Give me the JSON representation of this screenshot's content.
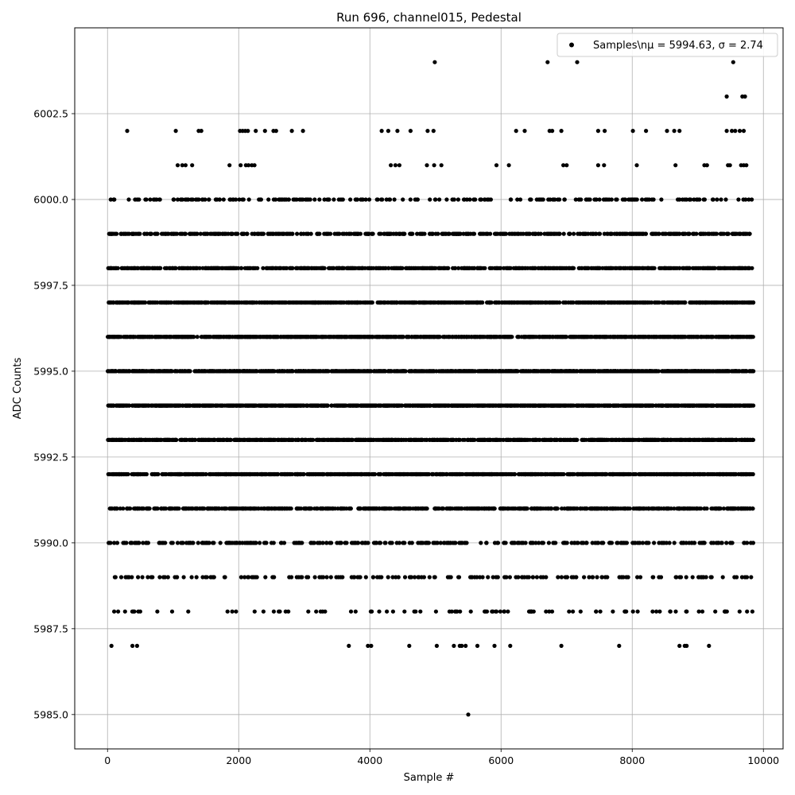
{
  "chart_data": {
    "type": "scatter",
    "title": "Run 696, channel015, Pedestal",
    "xlabel": "Sample #",
    "ylabel": "ADC Counts",
    "xlim": [
      -500,
      10300
    ],
    "ylim": [
      5984.0,
      6005.0
    ],
    "xticks": [
      0,
      2000,
      4000,
      6000,
      8000,
      10000
    ],
    "xtick_labels": [
      "0",
      "2000",
      "4000",
      "6000",
      "8000",
      "10000"
    ],
    "yticks": [
      5985.0,
      5987.5,
      5990.0,
      5992.5,
      5995.0,
      5997.5,
      6000.0,
      6002.5
    ],
    "ytick_labels": [
      "5985.0",
      "5987.5",
      "5990.0",
      "5992.5",
      "5995.0",
      "5997.5",
      "6000.0",
      "6002.5"
    ],
    "grid": true,
    "legend_position": "top-right",
    "n_samples": 9850,
    "series": [
      {
        "name": "Samples\\n$\\mu$ = 5994.63, $\\sigma$ = 2.74",
        "legend_text": "Samples\\nμ = 5994.63, σ = 2.74",
        "color": "#000000",
        "marker": "circle",
        "level_counts": [
          {
            "y": 5985,
            "count": 1
          },
          {
            "y": 5987,
            "count": 30
          },
          {
            "y": 5988,
            "count": 95
          },
          {
            "y": 5989,
            "count": 180
          },
          {
            "y": 5990,
            "count": 330
          },
          {
            "y": 5991,
            "count": 700
          },
          {
            "y": 5992,
            "count": 900
          },
          {
            "y": 5993,
            "count": 1100
          },
          {
            "y": 5994,
            "count": 1200
          },
          {
            "y": 5995,
            "count": 1200
          },
          {
            "y": 5996,
            "count": 1100
          },
          {
            "y": 5997,
            "count": 950
          },
          {
            "y": 5998,
            "count": 700
          },
          {
            "y": 5999,
            "count": 500
          },
          {
            "y": 6000,
            "count": 220
          },
          {
            "y": 6001,
            "count": 60
          },
          {
            "y": 6002,
            "count": 45
          },
          {
            "y": 6003,
            "count": 3
          },
          {
            "y": 6004,
            "count": 4
          }
        ],
        "points": [
          [
            5500,
            5985
          ],
          [
            60,
            5987
          ],
          [
            380,
            5987
          ],
          [
            450,
            5987
          ],
          [
            3680,
            5987
          ],
          [
            3970,
            5987
          ],
          [
            4020,
            5987
          ],
          [
            4600,
            5987
          ],
          [
            5020,
            5987
          ],
          [
            5280,
            5987
          ],
          [
            5370,
            5987
          ],
          [
            5400,
            5987
          ],
          [
            5460,
            5987
          ],
          [
            5640,
            5987
          ],
          [
            5900,
            5987
          ],
          [
            6140,
            5987
          ],
          [
            6920,
            5987
          ],
          [
            7800,
            5987
          ],
          [
            8720,
            5987
          ],
          [
            8800,
            5987
          ],
          [
            8830,
            5987
          ],
          [
            9170,
            5987
          ],
          [
            9440,
            6003
          ],
          [
            9680,
            6003
          ],
          [
            9720,
            6003
          ],
          [
            4990,
            6004
          ],
          [
            6710,
            6004
          ],
          [
            7160,
            6004
          ],
          [
            9540,
            6004
          ],
          [
            300,
            6002
          ],
          [
            1040,
            6002
          ],
          [
            1390,
            6002
          ],
          [
            1430,
            6002
          ],
          [
            2020,
            6002
          ],
          [
            2060,
            6002
          ],
          [
            2100,
            6002
          ],
          [
            2140,
            6002
          ],
          [
            2260,
            6002
          ],
          [
            2400,
            6002
          ],
          [
            2530,
            6002
          ],
          [
            2570,
            6002
          ],
          [
            2810,
            6002
          ],
          [
            2980,
            6002
          ],
          [
            4180,
            6002
          ],
          [
            4280,
            6002
          ],
          [
            4420,
            6002
          ],
          [
            4620,
            6002
          ],
          [
            4880,
            6002
          ],
          [
            4970,
            6002
          ],
          [
            6230,
            6002
          ],
          [
            6360,
            6002
          ],
          [
            6740,
            6002
          ],
          [
            6780,
            6002
          ],
          [
            6920,
            6002
          ],
          [
            7480,
            6002
          ],
          [
            7580,
            6002
          ],
          [
            8010,
            6002
          ],
          [
            8210,
            6002
          ],
          [
            8530,
            6002
          ],
          [
            8640,
            6002
          ],
          [
            8720,
            6002
          ],
          [
            9440,
            6002
          ],
          [
            9520,
            6002
          ],
          [
            9570,
            6002
          ],
          [
            9640,
            6002
          ],
          [
            9700,
            6002
          ],
          [
            1070,
            6001
          ],
          [
            1140,
            6001
          ],
          [
            1190,
            6001
          ],
          [
            1290,
            6001
          ],
          [
            1860,
            6001
          ],
          [
            2030,
            6001
          ],
          [
            2110,
            6001
          ],
          [
            2150,
            6001
          ],
          [
            2200,
            6001
          ],
          [
            2240,
            6001
          ],
          [
            4320,
            6001
          ],
          [
            4390,
            6001
          ],
          [
            4450,
            6001
          ],
          [
            4870,
            6001
          ],
          [
            4980,
            6001
          ],
          [
            5090,
            6001
          ],
          [
            5930,
            6001
          ],
          [
            6120,
            6001
          ],
          [
            6950,
            6001
          ],
          [
            7000,
            6001
          ],
          [
            7480,
            6001
          ],
          [
            7570,
            6001
          ],
          [
            8070,
            6001
          ],
          [
            8660,
            6001
          ],
          [
            9100,
            6001
          ],
          [
            9140,
            6001
          ],
          [
            9460,
            6001
          ],
          [
            9490,
            6001
          ],
          [
            9660,
            6001
          ],
          [
            9700,
            6001
          ],
          [
            9740,
            6001
          ]
        ]
      }
    ]
  }
}
